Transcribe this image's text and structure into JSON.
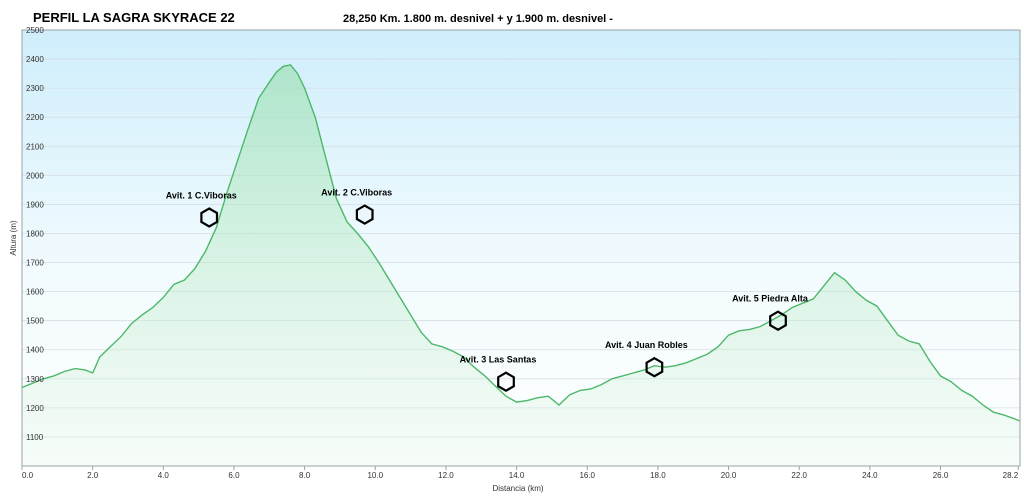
{
  "chart_data": {
    "type": "area",
    "title": "PERFIL LA SAGRA SKYRACE 22",
    "subtitle": "28,250 Km. 1.800 m. desnivel + y 1.900 m. desnivel -",
    "xlabel": "Distancia  (km)",
    "ylabel": "Altura (m)",
    "xlim": [
      0,
      28.25
    ],
    "ylim": [
      1000,
      2500
    ],
    "x_ticks": [
      "0.0",
      "2.0",
      "4.0",
      "6.0",
      "8.0",
      "10.0",
      "12.0",
      "14.0",
      "16.0",
      "18.0",
      "20.0",
      "22.0",
      "24.0",
      "26.0",
      "28.2"
    ],
    "x_tick_values": [
      0,
      2,
      4,
      6,
      8,
      10,
      12,
      14,
      16,
      18,
      20,
      22,
      24,
      26,
      28.2
    ],
    "y_ticks": [
      "1100",
      "1200",
      "1300",
      "1400",
      "1500",
      "1600",
      "1700",
      "1800",
      "1900",
      "2000",
      "2100",
      "2200",
      "2300",
      "2400",
      "2500"
    ],
    "y_tick_values": [
      1100,
      1200,
      1300,
      1400,
      1500,
      1600,
      1700,
      1800,
      1900,
      2000,
      2100,
      2200,
      2300,
      2400,
      2500
    ],
    "grid": true,
    "line_color": "#4db86a",
    "series": [
      {
        "name": "",
        "x": [
          0,
          0.3,
          0.6,
          0.9,
          1.2,
          1.5,
          1.8,
          2.0,
          2.2,
          2.5,
          2.8,
          3.1,
          3.4,
          3.7,
          4.0,
          4.3,
          4.6,
          4.9,
          5.2,
          5.5,
          5.8,
          6.1,
          6.4,
          6.7,
          7.0,
          7.2,
          7.4,
          7.6,
          7.8,
          8.0,
          8.3,
          8.6,
          8.9,
          9.2,
          9.5,
          9.8,
          10.1,
          10.4,
          10.7,
          11.0,
          11.3,
          11.6,
          11.9,
          12.2,
          12.5,
          12.8,
          13.1,
          13.4,
          13.7,
          14.0,
          14.3,
          14.6,
          14.9,
          15.2,
          15.5,
          15.8,
          16.1,
          16.4,
          16.7,
          17.0,
          17.3,
          17.6,
          17.9,
          18.2,
          18.5,
          18.8,
          19.1,
          19.4,
          19.7,
          20.0,
          20.3,
          20.6,
          20.9,
          21.2,
          21.5,
          21.8,
          22.1,
          22.4,
          22.7,
          23.0,
          23.3,
          23.6,
          23.9,
          24.2,
          24.5,
          24.8,
          25.1,
          25.4,
          25.7,
          26.0,
          26.3,
          26.6,
          26.9,
          27.2,
          27.5,
          27.8,
          28.25
        ],
        "y": [
          1270,
          1285,
          1300,
          1310,
          1325,
          1335,
          1330,
          1320,
          1375,
          1410,
          1445,
          1490,
          1520,
          1545,
          1580,
          1625,
          1640,
          1680,
          1740,
          1820,
          1940,
          2050,
          2160,
          2265,
          2320,
          2355,
          2375,
          2380,
          2350,
          2300,
          2200,
          2060,
          1920,
          1840,
          1800,
          1755,
          1700,
          1640,
          1580,
          1520,
          1460,
          1420,
          1410,
          1395,
          1375,
          1340,
          1310,
          1275,
          1240,
          1220,
          1225,
          1235,
          1240,
          1210,
          1245,
          1260,
          1265,
          1280,
          1300,
          1310,
          1320,
          1330,
          1345,
          1340,
          1345,
          1355,
          1370,
          1385,
          1410,
          1450,
          1465,
          1470,
          1480,
          1500,
          1520,
          1545,
          1560,
          1575,
          1620,
          1665,
          1640,
          1600,
          1570,
          1550,
          1500,
          1450,
          1430,
          1420,
          1360,
          1310,
          1290,
          1260,
          1240,
          1210,
          1185,
          1175,
          1155
        ]
      }
    ],
    "annotations": [
      {
        "label": "Avit. 1 C.Viboras",
        "x": 5.3,
        "y": 1855
      },
      {
        "label": "Avit. 2 C.Viboras",
        "x": 9.7,
        "y": 1865
      },
      {
        "label": "Avit. 3 Las Santas",
        "x": 13.7,
        "y": 1290
      },
      {
        "label": "Avit. 4 Juan Robles",
        "x": 17.9,
        "y": 1340
      },
      {
        "label": "Avit. 5 Piedra Alta",
        "x": 21.4,
        "y": 1500
      }
    ]
  }
}
